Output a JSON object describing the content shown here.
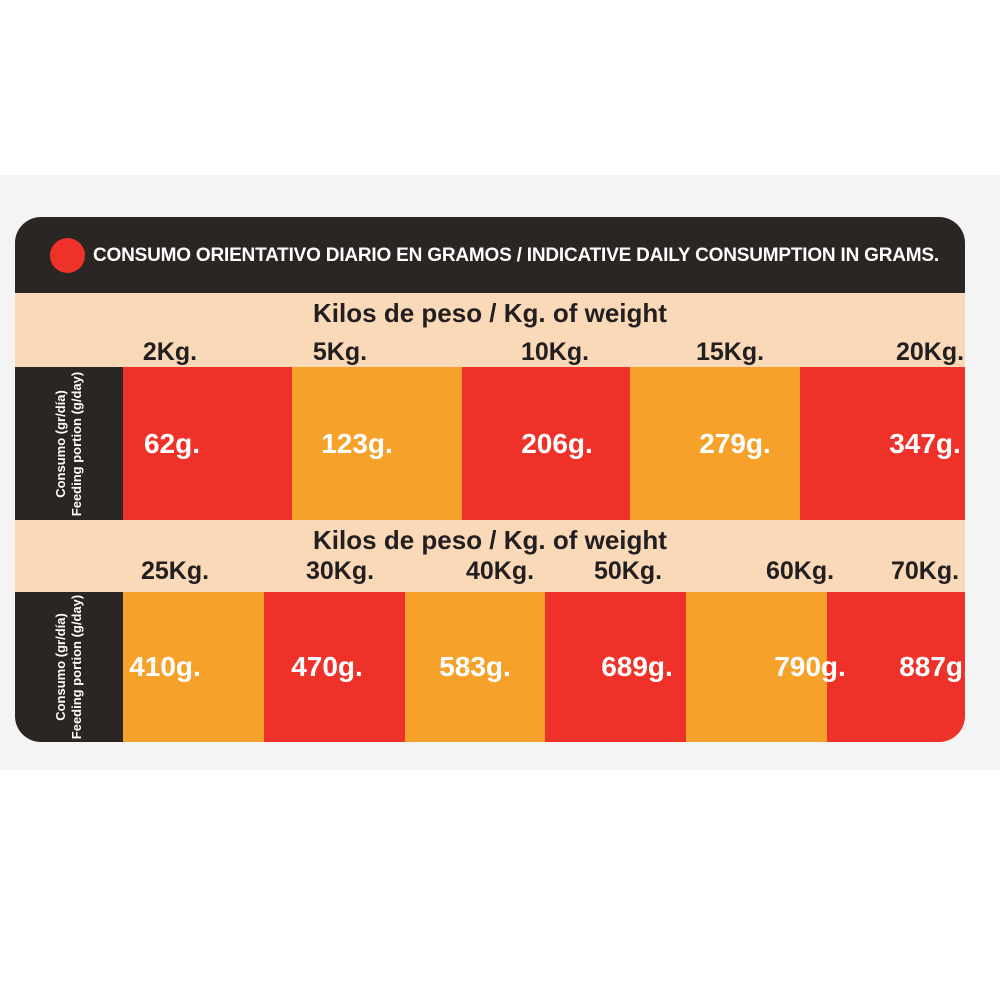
{
  "header": {
    "title": "CONSUMO ORIENTATIVO DIARIO EN GRAMOS / INDICATIVE DAILY CONSUMPTION IN GRAMS."
  },
  "sections": [
    {
      "heading": "Kilos de peso / Kg. of weight",
      "side_label": [
        "Consumo (gr/día)",
        "Feeding portion (g/day)"
      ],
      "weights": [
        "2Kg.",
        "5Kg.",
        "10Kg.",
        "15Kg.",
        "20Kg."
      ],
      "portions": [
        "62g.",
        "123g.",
        "206g.",
        "279g.",
        "347g."
      ]
    },
    {
      "heading": "Kilos de peso / Kg. of weight",
      "side_label": [
        "Consumo (gr/día)",
        "Feeding portion (g/day)"
      ],
      "weights": [
        "25Kg.",
        "30Kg.",
        "40Kg.",
        "50Kg.",
        "60Kg.",
        "70Kg."
      ],
      "portions": [
        "410g.",
        "470g.",
        "583g.",
        "689g.",
        "790g.",
        "887g."
      ]
    }
  ]
}
